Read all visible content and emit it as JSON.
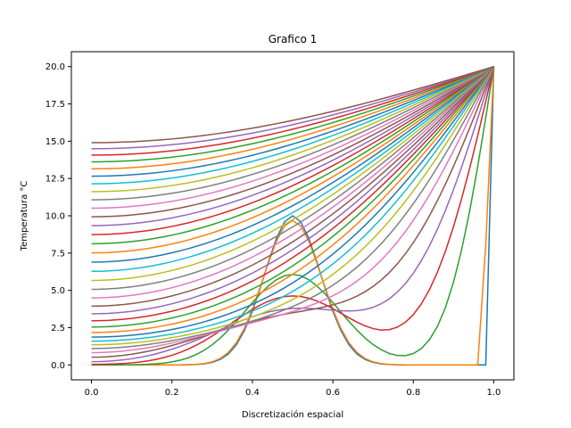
{
  "chart_data": {
    "type": "line",
    "title": "Grafico 1",
    "xlabel": "Discretización espacial",
    "ylabel": "Temperatura °C",
    "xlim": [
      -0.05,
      1.05
    ],
    "ylim": [
      -1.0,
      21.0
    ],
    "xticks": [
      "0.0",
      "0.2",
      "0.4",
      "0.6",
      "0.8",
      "1.0"
    ],
    "xtick_values": [
      0.0,
      0.2,
      0.4,
      0.6,
      0.8,
      1.0
    ],
    "yticks": [
      "0.0",
      "2.5",
      "5.0",
      "7.5",
      "10.0",
      "12.5",
      "15.0",
      "17.5",
      "20.0"
    ],
    "ytick_values": [
      0.0,
      2.5,
      5.0,
      7.5,
      10.0,
      12.5,
      15.0,
      17.5,
      20.0
    ],
    "grid": false,
    "legend": "none",
    "palette": [
      "#1f77b4",
      "#ff7f0e",
      "#2ca02c",
      "#d62728",
      "#9467bd",
      "#8c564b",
      "#e377c2",
      "#7f7f7f",
      "#bcbd22",
      "#17becf"
    ],
    "x": [
      0.0,
      0.02,
      0.04,
      0.06,
      0.08,
      0.1,
      0.12,
      0.14,
      0.16,
      0.18,
      0.2,
      0.22,
      0.24,
      0.26,
      0.28,
      0.3,
      0.32,
      0.34,
      0.36,
      0.38,
      0.4,
      0.42,
      0.44,
      0.46,
      0.48,
      0.5,
      0.52,
      0.54,
      0.56,
      0.58,
      0.6,
      0.62,
      0.64,
      0.66,
      0.68,
      0.7,
      0.72,
      0.74,
      0.76,
      0.78,
      0.8,
      0.82,
      0.84,
      0.86,
      0.88,
      0.9,
      0.92,
      0.94,
      0.96,
      0.98,
      1.0
    ],
    "initial_profile": {
      "amplitude": 10.0,
      "center": 0.5,
      "width": 0.07
    },
    "boundary_right": 20.0,
    "series_count": 36,
    "left_end_values_last": 6.2
  }
}
